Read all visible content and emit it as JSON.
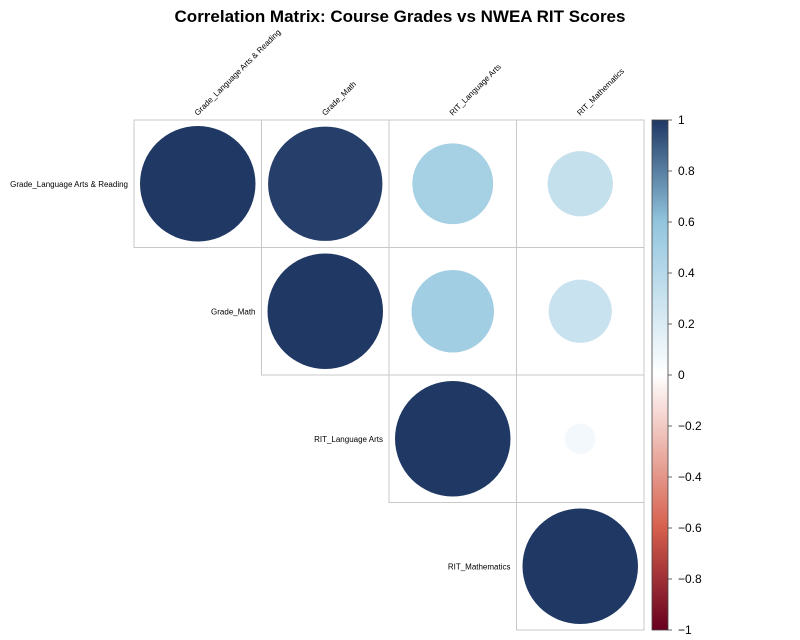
{
  "chart_data": {
    "type": "heatmap",
    "title": "Correlation Matrix: Course Grades vs NWEA RIT Scores",
    "variables": [
      "Grade_Language Arts & Reading",
      "Grade_Math",
      "RIT_Language Arts",
      "RIT_Mathematics"
    ],
    "matrix": [
      [
        1.0,
        0.98,
        0.49,
        0.32
      ],
      [
        0.98,
        1.0,
        0.51,
        0.3
      ],
      [
        0.49,
        0.51,
        1.0,
        0.07
      ],
      [
        0.32,
        0.3,
        0.07,
        1.0
      ]
    ],
    "display": "upper",
    "method": "circle",
    "colorbar": {
      "range": [
        -1,
        1
      ],
      "ticks": [
        "1",
        "0.8",
        "0.6",
        "0.4",
        "0.2",
        "0",
        "−0.2",
        "−0.4",
        "−0.6",
        "−0.8",
        "−1"
      ],
      "colors": {
        "neg1": "#67001f",
        "neg06": "#d6604d",
        "zero": "#ffffff",
        "pos06": "#92c5de",
        "pos1": "#1f3864"
      }
    }
  }
}
